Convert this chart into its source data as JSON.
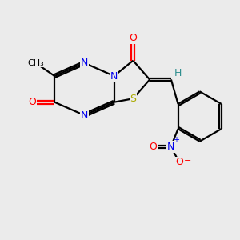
{
  "background_color": "#ebebeb",
  "bond_color": "#000000",
  "atom_colors": {
    "N": "#0000ee",
    "O": "#ff0000",
    "S": "#aaaa00",
    "H": "#2f8f8f",
    "C": "#000000"
  },
  "figsize": [
    3.0,
    3.0
  ],
  "dpi": 100
}
